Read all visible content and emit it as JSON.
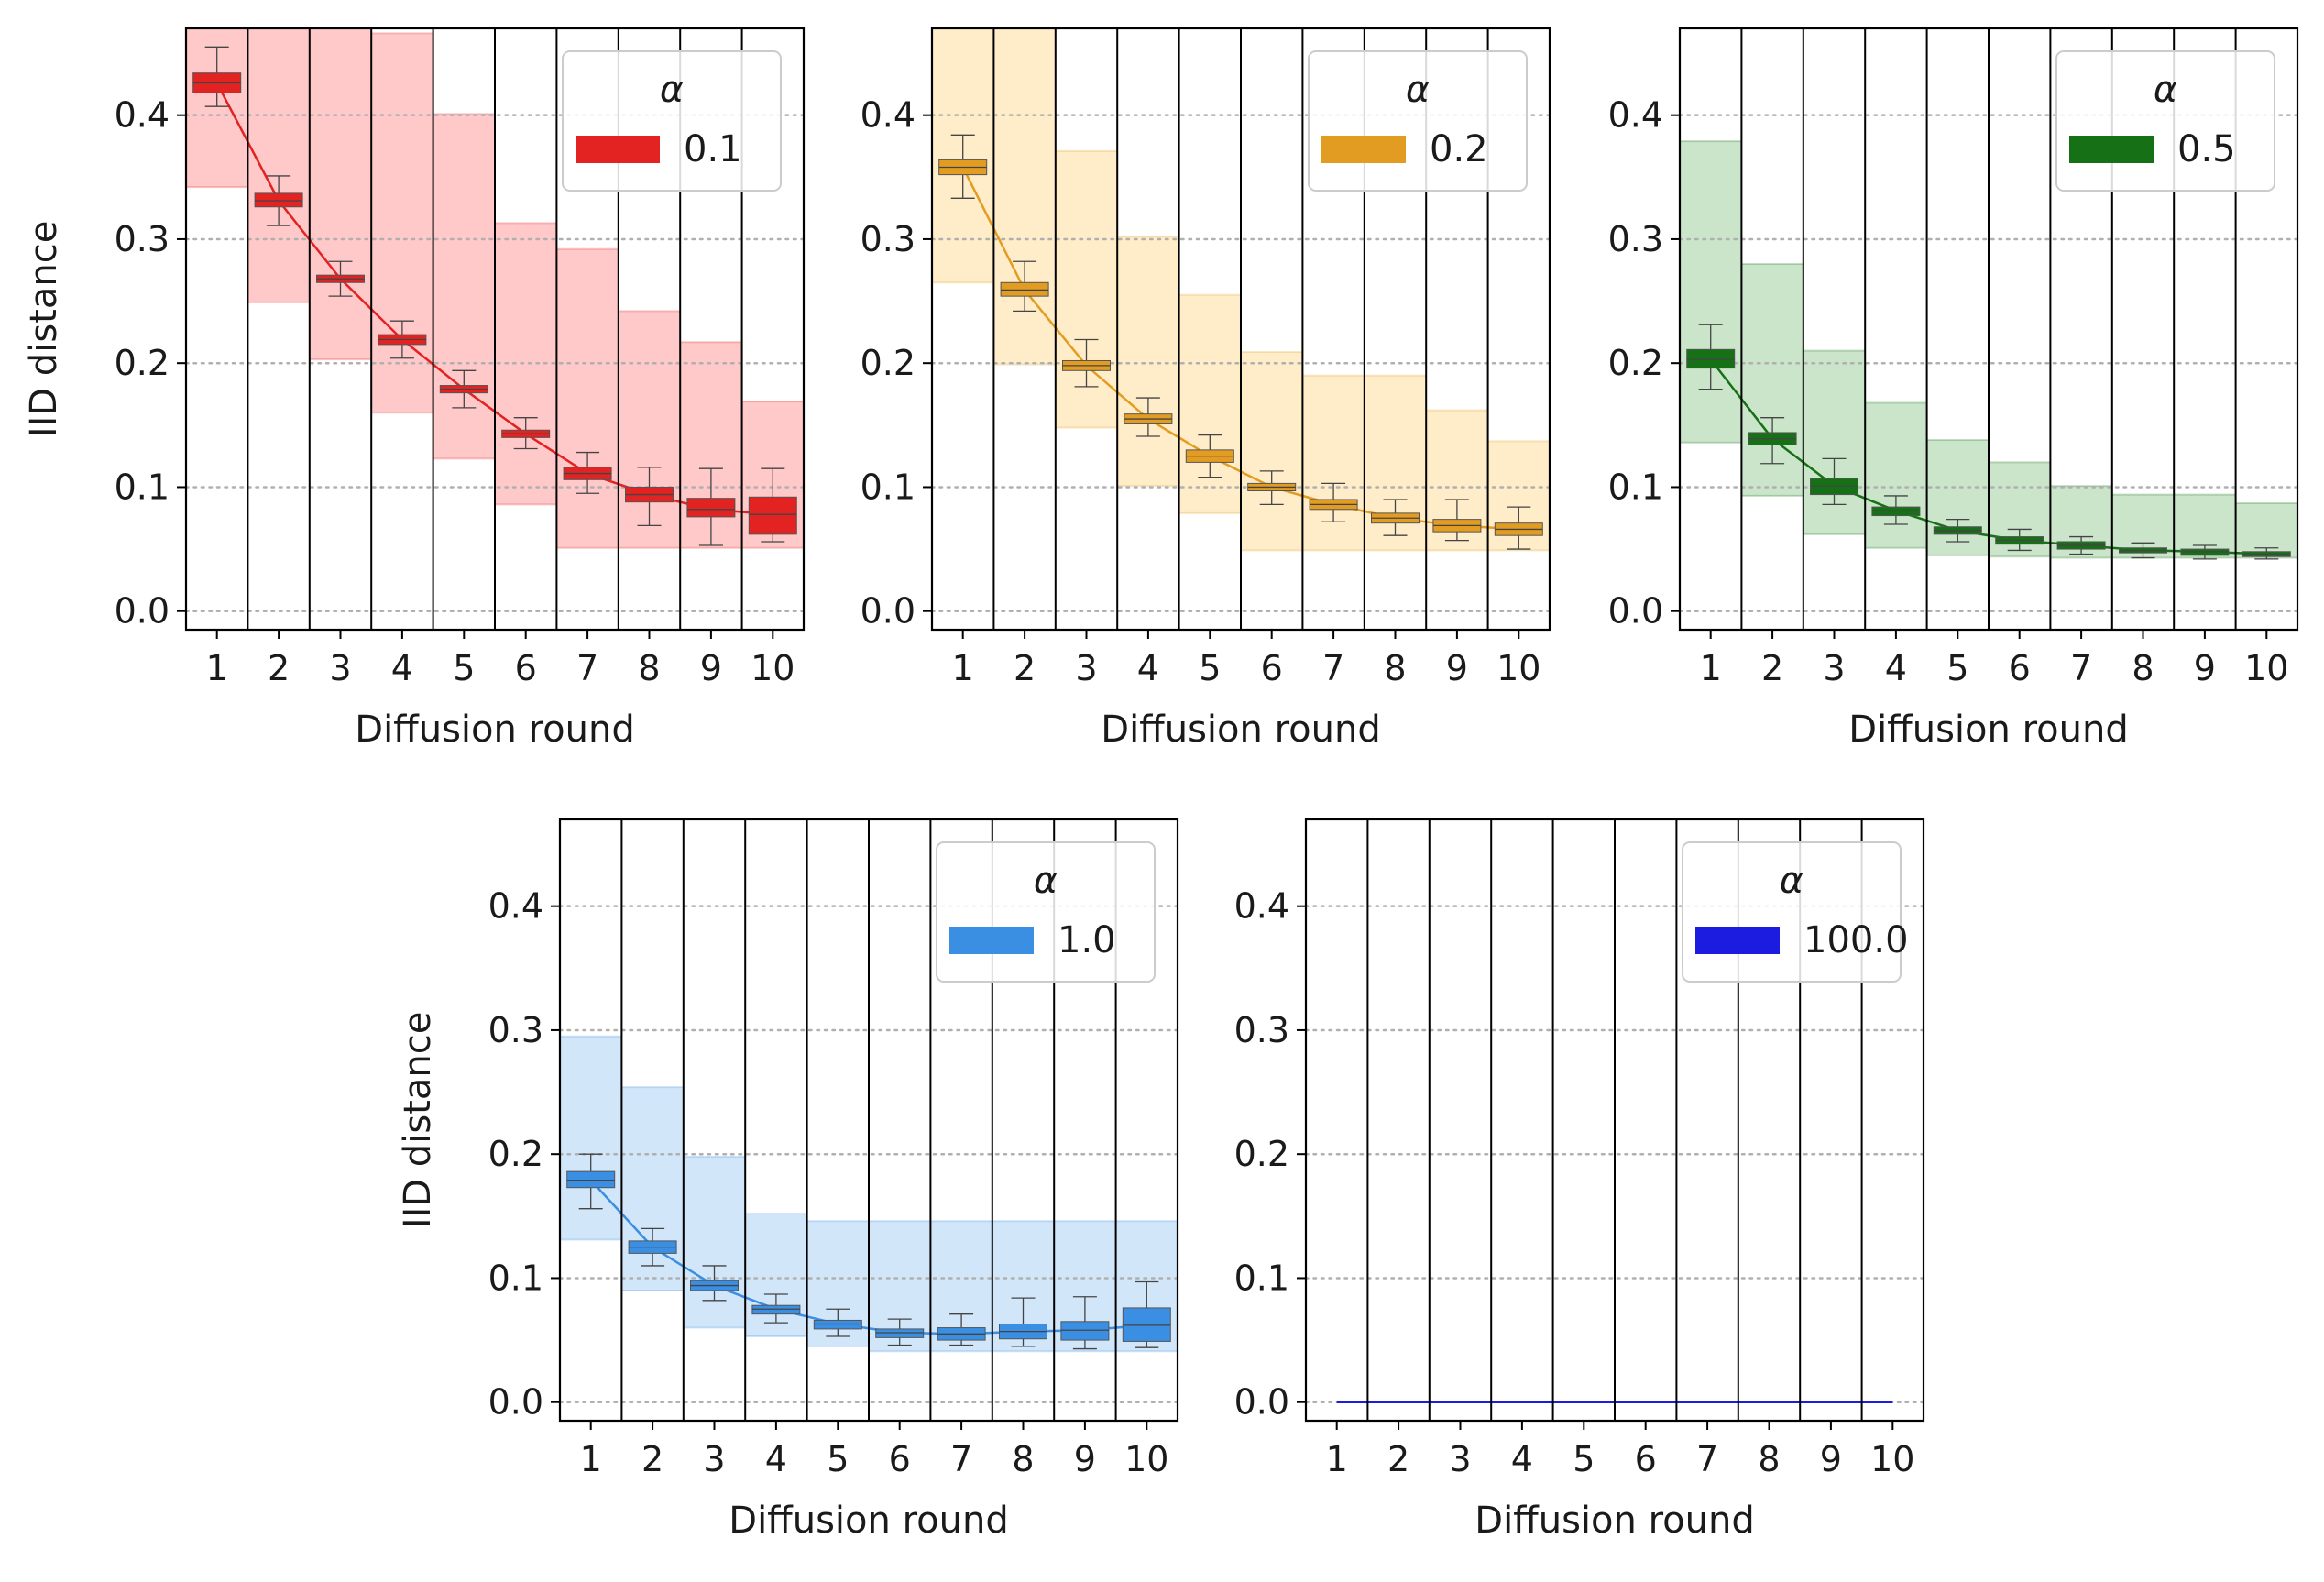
{
  "chart_data": [
    {
      "type": "box",
      "legend_title": "α",
      "legend_label": "0.1",
      "color": "#e32222",
      "band_color": "#ffc9c9",
      "xlabel": "Diffusion round",
      "ylabel": "IID distance",
      "categories": [
        "1",
        "2",
        "3",
        "4",
        "5",
        "6",
        "7",
        "8",
        "9",
        "10"
      ],
      "ylim": [
        -0.015,
        0.47
      ],
      "yticks": [
        0.0,
        0.1,
        0.2,
        0.3,
        0.4
      ],
      "ytick_labels": [
        "0.0",
        "0.1",
        "0.2",
        "0.3",
        "0.4"
      ],
      "grid": "horizontal dotted",
      "legend_position": "top-right",
      "median": [
        0.426,
        0.331,
        0.268,
        0.219,
        0.179,
        0.143,
        0.111,
        0.094,
        0.082,
        0.078
      ],
      "q1": [
        0.418,
        0.326,
        0.265,
        0.215,
        0.176,
        0.14,
        0.106,
        0.088,
        0.076,
        0.062
      ],
      "q3": [
        0.434,
        0.337,
        0.271,
        0.223,
        0.182,
        0.146,
        0.116,
        0.1,
        0.091,
        0.092
      ],
      "whisker_low": [
        0.407,
        0.311,
        0.254,
        0.204,
        0.164,
        0.131,
        0.095,
        0.069,
        0.053,
        0.056
      ],
      "whisker_high": [
        0.455,
        0.351,
        0.282,
        0.234,
        0.194,
        0.156,
        0.128,
        0.116,
        0.115,
        0.115
      ],
      "band_low": [
        0.342,
        0.249,
        0.203,
        0.16,
        0.123,
        0.086,
        0.051,
        0.051,
        0.051,
        0.051
      ],
      "band_high": [
        0.47,
        0.47,
        0.47,
        0.466,
        0.401,
        0.313,
        0.292,
        0.242,
        0.217,
        0.169
      ]
    },
    {
      "type": "box",
      "legend_title": "α",
      "legend_label": "0.2",
      "color": "#e39c22",
      "band_color": "#ffedc9",
      "xlabel": "Diffusion round",
      "ylabel": "",
      "categories": [
        "1",
        "2",
        "3",
        "4",
        "5",
        "6",
        "7",
        "8",
        "9",
        "10"
      ],
      "ylim": [
        -0.015,
        0.47
      ],
      "yticks": [
        0.0,
        0.1,
        0.2,
        0.3,
        0.4
      ],
      "ytick_labels": [
        "0.0",
        "0.1",
        "0.2",
        "0.3",
        "0.4"
      ],
      "grid": "horizontal dotted",
      "legend_position": "top-right",
      "median": [
        0.358,
        0.259,
        0.198,
        0.155,
        0.125,
        0.1,
        0.086,
        0.075,
        0.069,
        0.066
      ],
      "q1": [
        0.352,
        0.254,
        0.194,
        0.151,
        0.12,
        0.097,
        0.082,
        0.071,
        0.064,
        0.061
      ],
      "q3": [
        0.364,
        0.265,
        0.202,
        0.159,
        0.13,
        0.103,
        0.09,
        0.079,
        0.074,
        0.071
      ],
      "whisker_low": [
        0.333,
        0.242,
        0.181,
        0.141,
        0.108,
        0.086,
        0.072,
        0.061,
        0.057,
        0.05
      ],
      "whisker_high": [
        0.384,
        0.282,
        0.219,
        0.172,
        0.142,
        0.113,
        0.103,
        0.09,
        0.09,
        0.084
      ],
      "band_low": [
        0.265,
        0.199,
        0.148,
        0.101,
        0.079,
        0.049,
        0.049,
        0.049,
        0.049,
        0.049
      ],
      "band_high": [
        0.47,
        0.47,
        0.371,
        0.302,
        0.255,
        0.209,
        0.19,
        0.19,
        0.162,
        0.137
      ]
    },
    {
      "type": "box",
      "legend_title": "α",
      "legend_label": "0.5",
      "color": "#167116",
      "band_color": "#cbe5cb",
      "xlabel": "Diffusion round",
      "ylabel": "",
      "categories": [
        "1",
        "2",
        "3",
        "4",
        "5",
        "6",
        "7",
        "8",
        "9",
        "10"
      ],
      "ylim": [
        -0.015,
        0.47
      ],
      "yticks": [
        0.0,
        0.1,
        0.2,
        0.3,
        0.4
      ],
      "ytick_labels": [
        "0.0",
        "0.1",
        "0.2",
        "0.3",
        "0.4"
      ],
      "grid": "horizontal dotted",
      "legend_position": "top-right",
      "median": [
        0.203,
        0.139,
        0.101,
        0.081,
        0.065,
        0.057,
        0.053,
        0.049,
        0.048,
        0.046
      ],
      "q1": [
        0.196,
        0.134,
        0.094,
        0.077,
        0.062,
        0.054,
        0.05,
        0.047,
        0.045,
        0.044
      ],
      "q3": [
        0.211,
        0.144,
        0.107,
        0.084,
        0.068,
        0.06,
        0.056,
        0.051,
        0.05,
        0.048
      ],
      "whisker_low": [
        0.179,
        0.119,
        0.086,
        0.07,
        0.056,
        0.049,
        0.046,
        0.043,
        0.042,
        0.042
      ],
      "whisker_high": [
        0.231,
        0.156,
        0.123,
        0.093,
        0.074,
        0.066,
        0.06,
        0.055,
        0.053,
        0.051
      ],
      "band_low": [
        0.136,
        0.093,
        0.062,
        0.051,
        0.045,
        0.044,
        0.043,
        0.043,
        0.043,
        0.043
      ],
      "band_high": [
        0.379,
        0.28,
        0.21,
        0.168,
        0.138,
        0.12,
        0.101,
        0.094,
        0.094,
        0.087
      ]
    },
    {
      "type": "box",
      "legend_title": "α",
      "legend_label": "1.0",
      "color": "#3a8fe3",
      "band_color": "#d2e6fa",
      "xlabel": "Diffusion round",
      "ylabel": "IID distance",
      "categories": [
        "1",
        "2",
        "3",
        "4",
        "5",
        "6",
        "7",
        "8",
        "9",
        "10"
      ],
      "ylim": [
        -0.015,
        0.47
      ],
      "yticks": [
        0.0,
        0.1,
        0.2,
        0.3,
        0.4
      ],
      "ytick_labels": [
        "0.0",
        "0.1",
        "0.2",
        "0.3",
        "0.4"
      ],
      "grid": "horizontal dotted",
      "legend_position": "top-right",
      "median": [
        0.179,
        0.125,
        0.094,
        0.075,
        0.063,
        0.056,
        0.055,
        0.057,
        0.058,
        0.062
      ],
      "q1": [
        0.173,
        0.12,
        0.09,
        0.071,
        0.059,
        0.052,
        0.05,
        0.051,
        0.05,
        0.049
      ],
      "q3": [
        0.186,
        0.13,
        0.098,
        0.078,
        0.066,
        0.059,
        0.06,
        0.063,
        0.065,
        0.076
      ],
      "whisker_low": [
        0.156,
        0.11,
        0.082,
        0.064,
        0.053,
        0.046,
        0.046,
        0.045,
        0.043,
        0.044
      ],
      "whisker_high": [
        0.2,
        0.14,
        0.11,
        0.087,
        0.075,
        0.067,
        0.071,
        0.084,
        0.085,
        0.097
      ],
      "band_low": [
        0.131,
        0.09,
        0.06,
        0.053,
        0.045,
        0.041,
        0.041,
        0.041,
        0.041,
        0.041
      ],
      "band_high": [
        0.295,
        0.254,
        0.198,
        0.152,
        0.146,
        0.146,
        0.146,
        0.146,
        0.146,
        0.146
      ]
    },
    {
      "type": "box",
      "legend_title": "α",
      "legend_label": "100.0",
      "color": "#1c1ce0",
      "band_color": "#d4d4fa",
      "xlabel": "Diffusion round",
      "ylabel": "",
      "categories": [
        "1",
        "2",
        "3",
        "4",
        "5",
        "6",
        "7",
        "8",
        "9",
        "10"
      ],
      "ylim": [
        -0.015,
        0.47
      ],
      "yticks": [
        0.0,
        0.1,
        0.2,
        0.3,
        0.4
      ],
      "ytick_labels": [
        "0.0",
        "0.1",
        "0.2",
        "0.3",
        "0.4"
      ],
      "grid": "horizontal dotted",
      "legend_position": "top-right",
      "median": [
        0,
        0,
        0,
        0,
        0,
        0,
        0,
        0,
        0,
        0
      ],
      "q1": [
        0,
        0,
        0,
        0,
        0,
        0,
        0,
        0,
        0,
        0
      ],
      "q3": [
        0,
        0,
        0,
        0,
        0,
        0,
        0,
        0,
        0,
        0
      ],
      "whisker_low": [
        0,
        0,
        0,
        0,
        0,
        0,
        0,
        0,
        0,
        0
      ],
      "whisker_high": [
        0,
        0,
        0,
        0,
        0,
        0,
        0,
        0,
        0,
        0
      ],
      "band_low": [
        0,
        0,
        0,
        0,
        0,
        0,
        0,
        0,
        0,
        0
      ],
      "band_high": [
        0,
        0,
        0,
        0,
        0,
        0,
        0,
        0,
        0,
        0
      ]
    }
  ]
}
